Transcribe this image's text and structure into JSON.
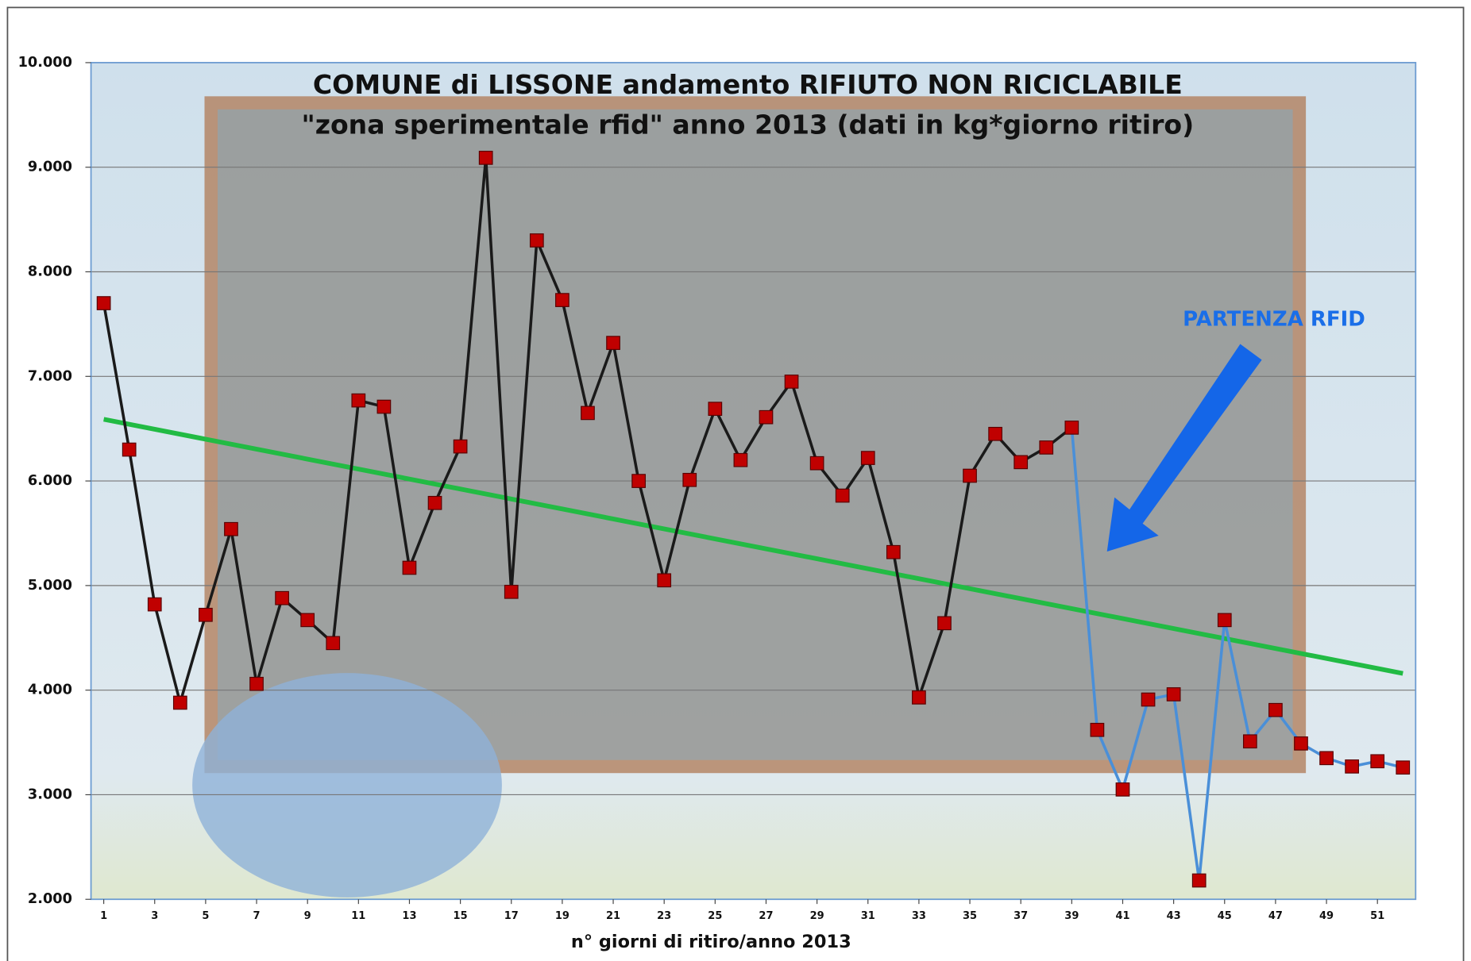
{
  "chart_data": {
    "type": "line",
    "title": "COMUNE  di LISSONE andamento RIFIUTO NON RICICLABILE",
    "subtitle": "\"zona sperimentale rfid\" anno 2013 (dati in kg*giorno ritiro)",
    "x_label": "n° giorni di ritiro/anno 2013",
    "annotation": "PARTENZA RFID",
    "x": [
      1,
      2,
      3,
      4,
      5,
      6,
      7,
      8,
      9,
      10,
      11,
      12,
      13,
      14,
      15,
      16,
      17,
      18,
      19,
      20,
      21,
      22,
      23,
      24,
      25,
      26,
      27,
      28,
      29,
      30,
      31,
      32,
      33,
      34,
      35,
      36,
      37,
      38,
      39,
      40,
      41,
      42,
      43,
      44,
      45,
      46,
      47,
      48,
      49,
      50,
      51,
      52
    ],
    "values": [
      7700,
      6300,
      4820,
      3880,
      4720,
      5540,
      4060,
      4880,
      4670,
      4450,
      6770,
      6710,
      5170,
      5790,
      6330,
      9090,
      4940,
      8300,
      7730,
      6650,
      7320,
      6000,
      5050,
      6010,
      6690,
      6200,
      6610,
      6950,
      6170,
      5860,
      6220,
      5320,
      3930,
      4640,
      6050,
      6450,
      6180,
      6320,
      6510,
      3620,
      3050,
      3910,
      3960,
      2180,
      4670,
      3510,
      3810,
      3490,
      3350,
      3270,
      3320,
      3260
    ],
    "color": "#1a1a1a",
    "color_after": "#4a8fd8",
    "color_change_x": 39,
    "marker_color": "#c00000",
    "trendline": {
      "x": [
        1,
        52
      ],
      "values": [
        6590,
        4160
      ],
      "color": "#22bb44"
    },
    "xlim": [
      0.5,
      52.5
    ],
    "ylim": [
      2000,
      10000
    ],
    "xticks": [
      1,
      3,
      5,
      7,
      9,
      11,
      13,
      15,
      17,
      19,
      21,
      23,
      25,
      27,
      29,
      31,
      33,
      35,
      37,
      39,
      41,
      43,
      45,
      47,
      49,
      51
    ],
    "yticks": [
      {
        "value": 2000,
        "label": "2.000"
      },
      {
        "value": 3000,
        "label": "3.000"
      },
      {
        "value": 4000,
        "label": "4.000"
      },
      {
        "value": 5000,
        "label": "5.000"
      },
      {
        "value": 6000,
        "label": "6.000"
      },
      {
        "value": 7000,
        "label": "7.000"
      },
      {
        "value": 8000,
        "label": "8.000"
      },
      {
        "value": 9000,
        "label": "9.000"
      },
      {
        "value": 10000,
        "label": "10.000"
      }
    ],
    "grid": true
  }
}
